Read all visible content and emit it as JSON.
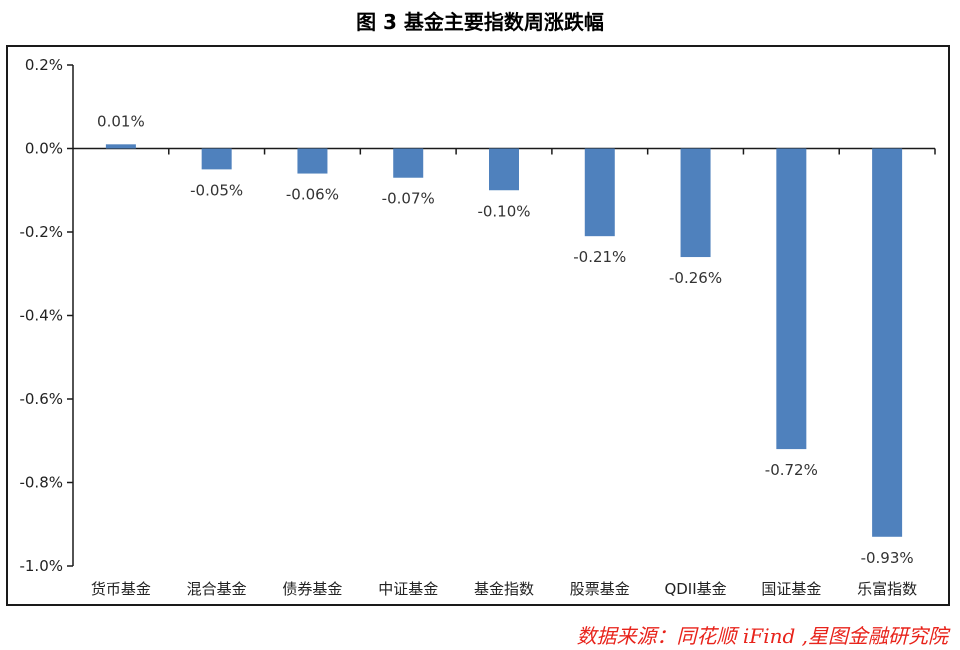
{
  "title": "图 3 基金主要指数周涨跌幅",
  "source": "数据来源：同花顺 iFind ,星图金融研究院",
  "colors": {
    "bar": "#4f81bd",
    "axis": "#1a1a1a",
    "source": "#e8231b"
  },
  "chart_data": {
    "type": "bar",
    "categories": [
      "货币基金",
      "混合基金",
      "债券基金",
      "中证基金",
      "基金指数",
      "股票基金",
      "QDII基金",
      "国证基金",
      "乐富指数"
    ],
    "values": [
      0.01,
      -0.05,
      -0.06,
      -0.07,
      -0.1,
      -0.21,
      -0.26,
      -0.72,
      -0.93
    ],
    "data_labels": [
      "0.01%",
      "-0.05%",
      "-0.06%",
      "-0.07%",
      "-0.10%",
      "-0.21%",
      "-0.26%",
      "-0.72%",
      "-0.93%"
    ],
    "ylim": [
      -1.0,
      0.2
    ],
    "yticks": [
      0.2,
      0.0,
      -0.2,
      -0.4,
      -0.6,
      -0.8,
      -1.0
    ],
    "ytick_labels": [
      "0.2%",
      "0.0%",
      "-0.2%",
      "-0.4%",
      "-0.6%",
      "-0.8%",
      "-1.0%"
    ],
    "xlabel": "",
    "ylabel": "",
    "grid": false
  }
}
